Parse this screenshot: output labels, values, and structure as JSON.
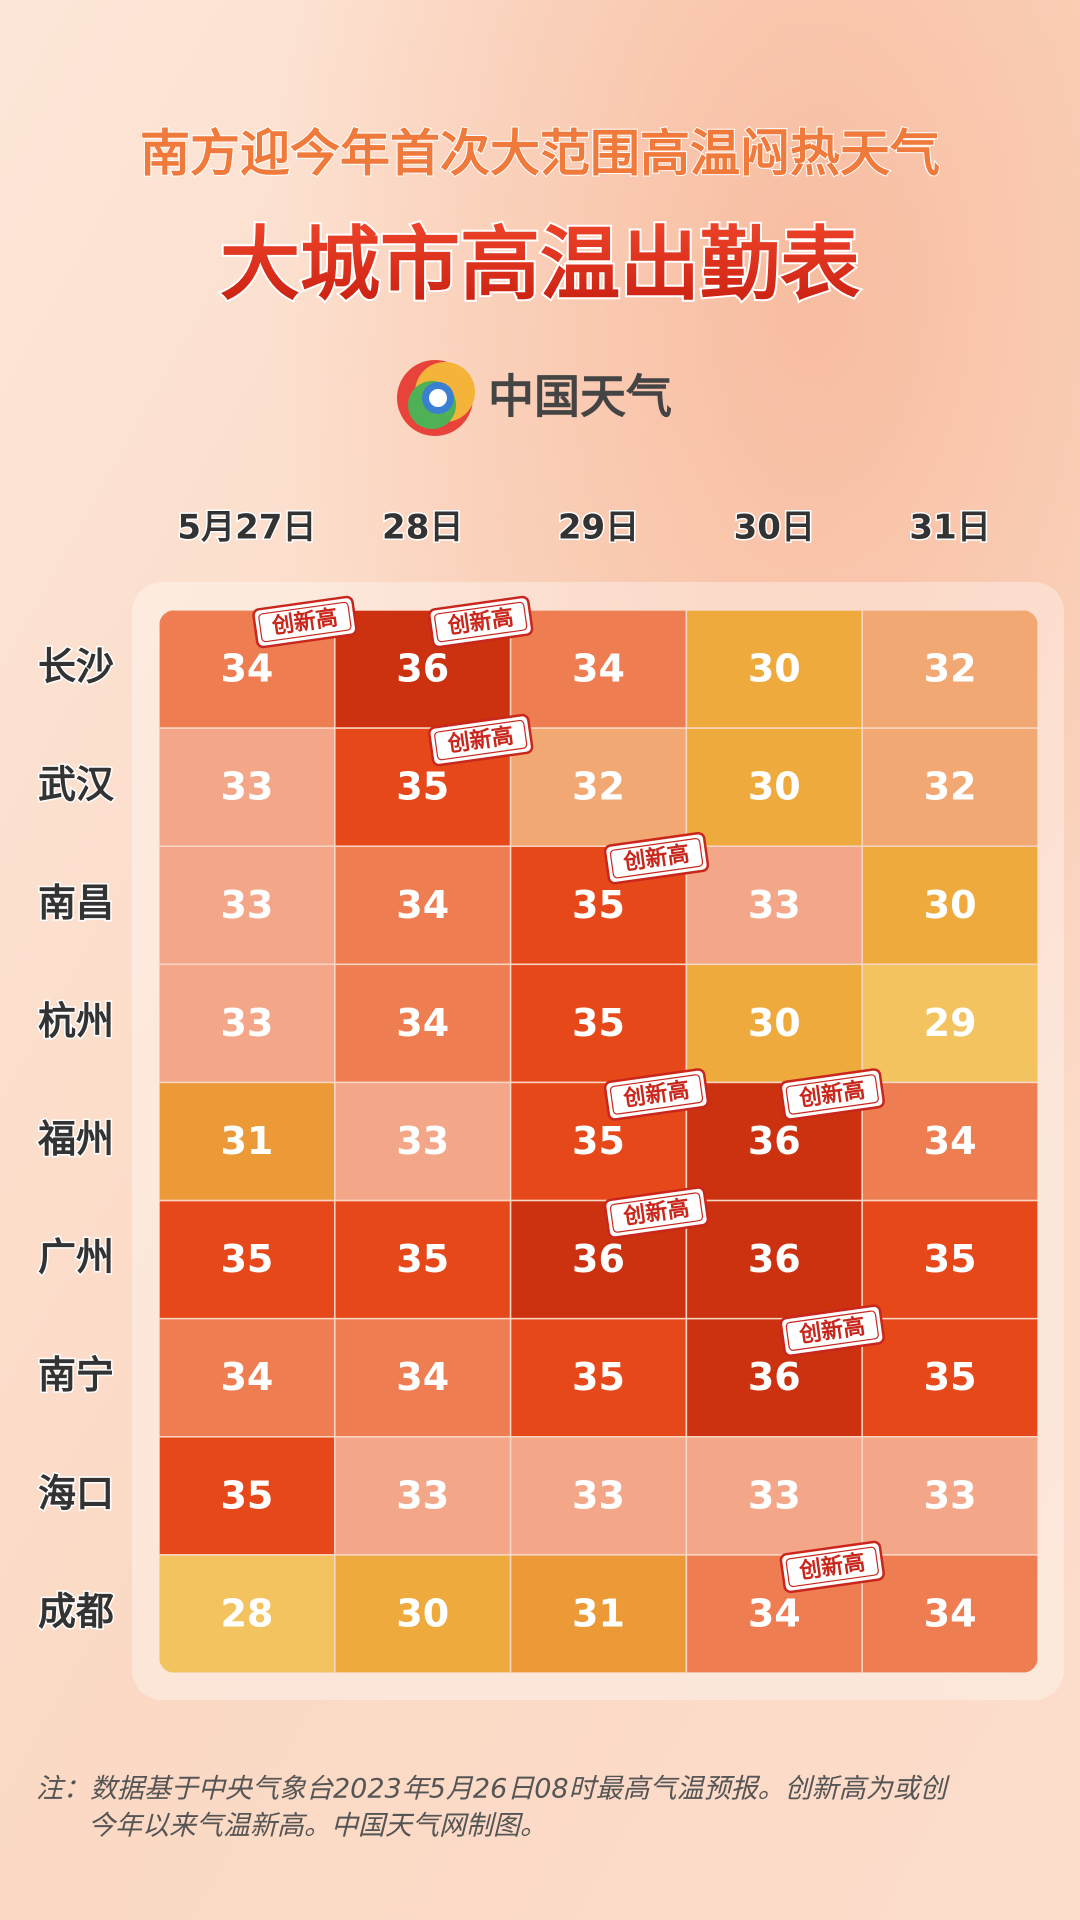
{
  "header": {
    "subtitle": "南方迎今年首次大范围高温闷热天气",
    "title": "大城市高温出勤表",
    "logo": "中国天气"
  },
  "table": {
    "columns": [
      "5月27日",
      "28日",
      "29日",
      "30日",
      "31日"
    ],
    "record_label": "创新高",
    "cell_colors": {
      "28": "#f2c35e",
      "29": "#f2c35e",
      "30": "#efaa3e",
      "31": "#ec9a38",
      "32": "#f2a872",
      "33": "#f4a689",
      "34": "#ee7d52",
      "35": "#e6481a",
      "36": "#cc3110"
    },
    "rows": [
      {
        "city": "长沙",
        "values": [
          34,
          36,
          34,
          30,
          32
        ],
        "records": [
          true,
          true,
          false,
          false,
          false
        ]
      },
      {
        "city": "武汉",
        "values": [
          33,
          35,
          32,
          30,
          32
        ],
        "records": [
          false,
          true,
          false,
          false,
          false
        ]
      },
      {
        "city": "南昌",
        "values": [
          33,
          34,
          35,
          33,
          30
        ],
        "records": [
          false,
          false,
          true,
          false,
          false
        ]
      },
      {
        "city": "杭州",
        "values": [
          33,
          34,
          35,
          30,
          29
        ],
        "records": [
          false,
          false,
          false,
          false,
          false
        ]
      },
      {
        "city": "福州",
        "values": [
          31,
          33,
          35,
          36,
          34
        ],
        "records": [
          false,
          false,
          true,
          true,
          false
        ]
      },
      {
        "city": "广州",
        "values": [
          35,
          35,
          36,
          36,
          35
        ],
        "records": [
          false,
          false,
          true,
          false,
          false
        ]
      },
      {
        "city": "南宁",
        "values": [
          34,
          34,
          35,
          36,
          35
        ],
        "records": [
          false,
          false,
          false,
          true,
          false
        ]
      },
      {
        "city": "海口",
        "values": [
          35,
          33,
          33,
          33,
          33
        ],
        "records": [
          false,
          false,
          false,
          false,
          false
        ]
      },
      {
        "city": "成都",
        "values": [
          28,
          30,
          31,
          34,
          34
        ],
        "records": [
          false,
          false,
          false,
          true,
          false
        ]
      }
    ]
  },
  "footnote": [
    "注：数据基于中央气象台2023年5月26日08时最高气温预报。创新高为或创",
    "今年以来气温新高。中国天气网制图。"
  ]
}
